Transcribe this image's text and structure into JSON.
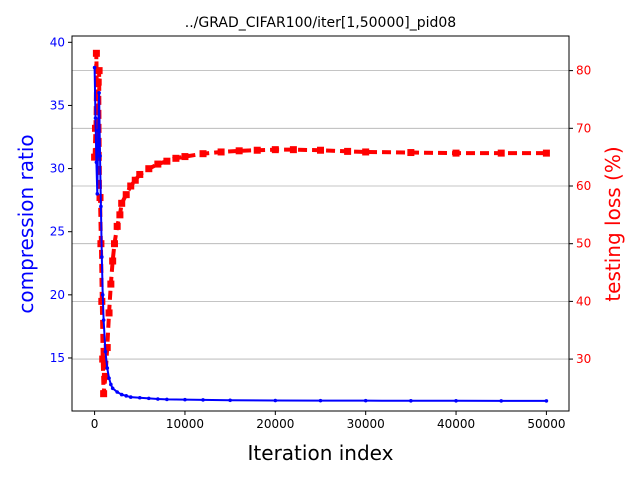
{
  "chart_data": {
    "type": "line",
    "title": "../GRAD_CIFAR100/iter[1,50000]_pid08",
    "xlabel": "Iteration index",
    "ylabel_left": "compression ratio",
    "ylabel_right": "testing loss (%)",
    "xlim": [
      -2500,
      52500
    ],
    "ylim_left": [
      10.8,
      40.5
    ],
    "ylim_right": [
      21,
      86
    ],
    "x_ticks": [
      0,
      10000,
      20000,
      30000,
      40000,
      50000
    ],
    "x_tick_labels": [
      "0",
      "10000",
      "20000",
      "30000",
      "40000",
      "50000"
    ],
    "y_left_ticks": [
      15,
      20,
      25,
      30,
      35,
      40
    ],
    "y_left_tick_labels": [
      "15",
      "20",
      "25",
      "30",
      "35",
      "40"
    ],
    "y_right_ticks": [
      30,
      40,
      50,
      60,
      70,
      80
    ],
    "y_right_tick_labels": [
      "30",
      "40",
      "50",
      "60",
      "70",
      "80"
    ],
    "grid": "horizontal lines at right-axis ticks",
    "colors": {
      "left": "#0000ff",
      "right": "#ff0000",
      "grid": "#b0b0b0"
    },
    "series": [
      {
        "axis": "left",
        "color": "#0000ff",
        "style": "solid line with small dot markers",
        "x": [
          1,
          100,
          200,
          300,
          400,
          500,
          600,
          700,
          800,
          900,
          1000,
          1200,
          1400,
          1600,
          1800,
          2000,
          2500,
          3000,
          3500,
          4000,
          5000,
          6000,
          7000,
          8000,
          10000,
          12000,
          15000,
          20000,
          25000,
          30000,
          35000,
          40000,
          45000,
          50000
        ],
        "y": [
          38.0,
          34.0,
          30.5,
          28.0,
          33.0,
          36.0,
          31.0,
          27.0,
          23.0,
          20.0,
          18.0,
          15.5,
          14.2,
          13.4,
          12.9,
          12.6,
          12.3,
          12.1,
          12.0,
          11.9,
          11.85,
          11.8,
          11.75,
          11.72,
          11.7,
          11.68,
          11.65,
          11.63,
          11.62,
          11.62,
          11.61,
          11.61,
          11.6,
          11.6
        ]
      },
      {
        "axis": "right",
        "color": "#ff0000",
        "style": "thick dashed line with square markers",
        "x": [
          1,
          100,
          200,
          300,
          400,
          500,
          600,
          700,
          800,
          900,
          1000,
          1200,
          1400,
          1600,
          1800,
          2000,
          2200,
          2500,
          2800,
          3000,
          3500,
          4000,
          4500,
          5000,
          6000,
          7000,
          8000,
          9000,
          10000,
          12000,
          14000,
          16000,
          18000,
          20000,
          22000,
          25000,
          28000,
          30000,
          35000,
          40000,
          45000,
          50000
        ],
        "y": [
          65,
          70,
          83,
          66,
          78,
          80,
          58,
          50,
          40,
          30,
          24,
          27,
          32,
          38,
          43,
          47,
          50,
          53,
          55,
          57,
          58.5,
          60,
          61,
          62,
          63,
          63.8,
          64.3,
          64.8,
          65.1,
          65.6,
          65.9,
          66.1,
          66.2,
          66.3,
          66.3,
          66.2,
          66.0,
          65.9,
          65.8,
          65.7,
          65.7,
          65.7
        ]
      }
    ]
  }
}
